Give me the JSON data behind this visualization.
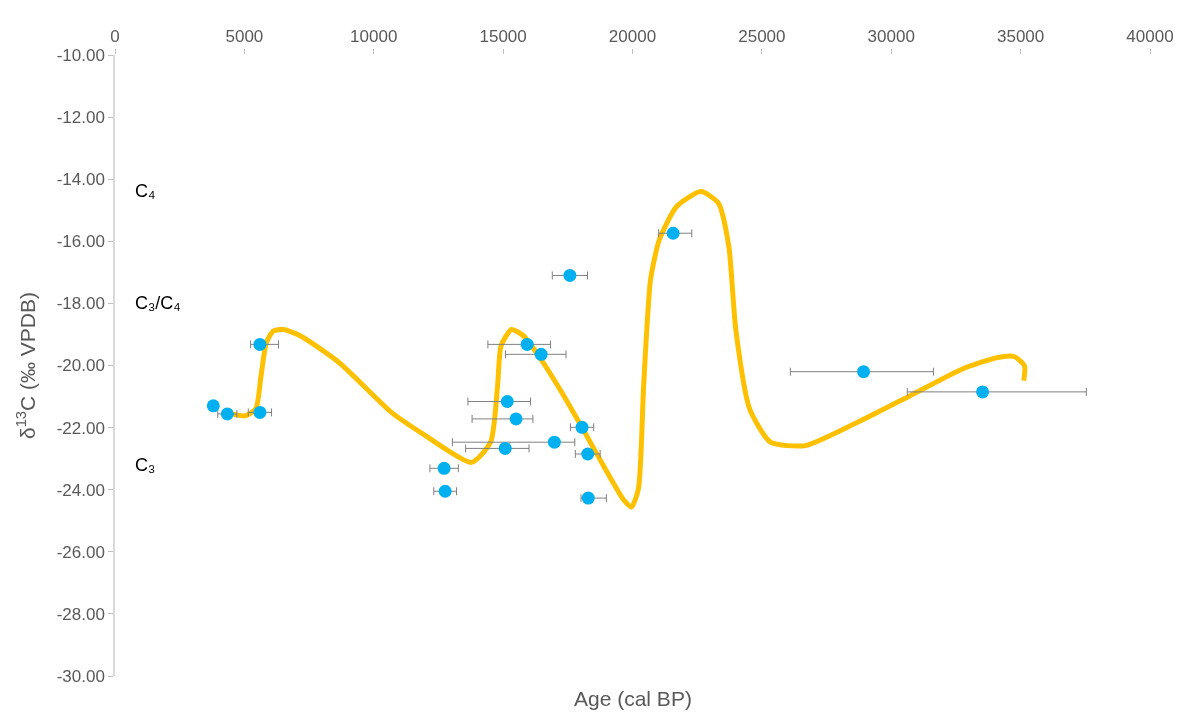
{
  "chart_data": {
    "type": "scatter",
    "xlabel": "Age (cal BP)",
    "ylabel": "δ$^{13}$C (‰ VPDB)",
    "xlim": [
      0,
      40000
    ],
    "xticks": [
      0,
      5000,
      10000,
      15000,
      20000,
      25000,
      30000,
      35000,
      40000
    ],
    "ylim": [
      -30,
      -10
    ],
    "yticks": [
      {
        "value": -10,
        "label": "-10.00"
      },
      {
        "value": -12,
        "label": "-12.00"
      },
      {
        "value": -14,
        "label": "-14.00"
      },
      {
        "value": -16,
        "label": "-16.00"
      },
      {
        "value": -18,
        "label": "-18.00"
      },
      {
        "value": -20,
        "label": "-20.00"
      },
      {
        "value": -22,
        "label": "-22.00"
      },
      {
        "value": -24,
        "label": "-24.00"
      },
      {
        "value": -26,
        "label": "-26.00"
      },
      {
        "value": -28,
        "label": "-28.00"
      },
      {
        "value": -30,
        "label": "-30.00"
      }
    ],
    "annotations": [
      "C₄",
      "C₃/C₄",
      "C₃"
    ],
    "series": [
      {
        "marker": "circle",
        "color": "#00b0f0",
        "x": [
          3800,
          4340,
          5600,
          5600,
          15930,
          16470,
          15160,
          15500,
          15080,
          16980,
          12720,
          12760,
          17580,
          18050,
          18270,
          18290,
          21570,
          28930,
          33530
        ],
        "values": [
          -21.3,
          -21.56,
          -21.51,
          -19.32,
          -19.32,
          -19.64,
          -21.16,
          -21.72,
          -22.67,
          -22.47,
          -23.31,
          -24.05,
          -17.1,
          -21.99,
          -22.85,
          -24.27,
          -15.74,
          -20.2,
          -20.85
        ],
        "xerrors": [
          null,
          370,
          450,
          [
            5240,
            6320
          ],
          [
            14410,
            16830
          ],
          [
            15090,
            17430
          ],
          [
            13640,
            16060
          ],
          [
            13800,
            16150
          ],
          [
            13550,
            16000
          ],
          [
            13040,
            17770
          ],
          550,
          440,
          680,
          450,
          480,
          [
            18010,
            18990
          ],
          [
            21010,
            22290
          ],
          [
            26100,
            31630
          ],
          [
            30620,
            37540
          ]
        ]
      },
      {
        "type": "line",
        "marker": "none",
        "color": "#ffc000",
        "x": [
          4234,
          5040,
          5444,
          5645,
          5847,
          6117,
          6520,
          7177,
          8669,
          10685,
          11895,
          13778,
          14516,
          14786,
          14919,
          15323,
          15794,
          16464,
          17270,
          18077,
          19020,
          19625,
          19960,
          20230,
          20431,
          20698,
          21036,
          21706,
          22649,
          23319,
          23722,
          23992,
          24528,
          25335,
          26681,
          28698,
          30714,
          32730,
          34073,
          34746,
          35149,
          35121
        ],
        "values": [
          -21.51,
          -21.62,
          -21.39,
          -20.33,
          -19.27,
          -18.89,
          -18.84,
          -19.05,
          -19.91,
          -21.51,
          -22.2,
          -23.12,
          -22.47,
          -20.65,
          -19.37,
          -18.84,
          -19.05,
          -19.8,
          -20.87,
          -22.04,
          -23.44,
          -24.29,
          -24.56,
          -23.97,
          -20.65,
          -17.23,
          -15.95,
          -14.88,
          -14.4,
          -14.77,
          -16.16,
          -18.84,
          -21.4,
          -22.47,
          -22.58,
          -21.83,
          -20.98,
          -20.12,
          -19.75,
          -19.71,
          -20.01,
          -20.49
        ]
      }
    ]
  }
}
